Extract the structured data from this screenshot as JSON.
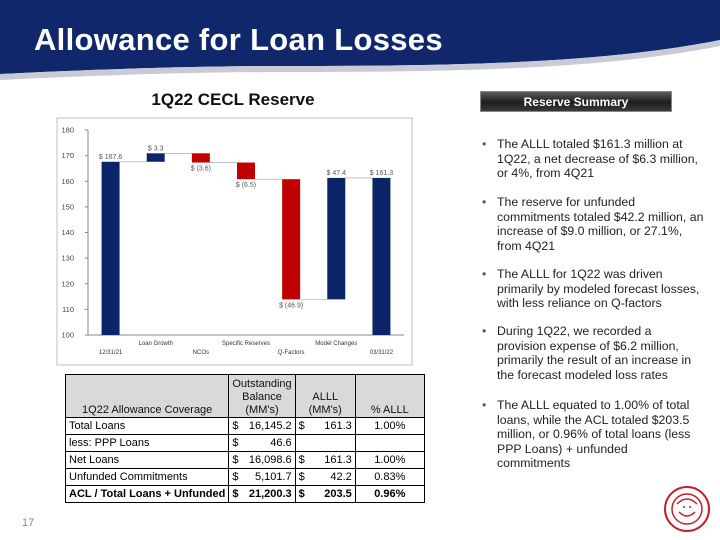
{
  "header": {
    "title": "Allowance for Loan Losses",
    "page_number": "17"
  },
  "chart_data": {
    "type": "waterfall",
    "title": "1Q22 CECL Reserve",
    "categories": [
      "12/31/21",
      "Loan Growth",
      "NCOs",
      "Specific Reserves",
      "Q-Factors",
      "Model Changes",
      "03/31/22"
    ],
    "values": [
      167.6,
      3.3,
      -3.6,
      -6.5,
      -46.9,
      47.4,
      161.3
    ],
    "value_labels": [
      "$ 167.6",
      "$ 3.3",
      "$ (3.6)",
      "$ (6.5)",
      "$ (46.9)",
      "$ 47.4",
      "$ 161.3"
    ],
    "measure": [
      "total",
      "relative",
      "relative",
      "relative",
      "relative",
      "relative",
      "total"
    ],
    "colors": {
      "total": "#0c2468",
      "increase": "#0c2468",
      "decrease": "#c00000"
    },
    "ylim": [
      100,
      180
    ],
    "yticks": [
      100,
      110,
      120,
      130,
      140,
      150,
      160,
      170,
      180
    ],
    "grid": false
  },
  "summary": {
    "title": "Reserve Summary",
    "bullets": [
      "The ALLL totaled $161.3 million at 1Q22, a net decrease of $6.3 million, or 4%, from 4Q21",
      "The reserve for unfunded commitments totaled $42.2 million, an increase of $9.0 million, or 27.1%, from 4Q21",
      "The ALLL for 1Q22 was driven primarily by modeled forecast losses, with less reliance on Q-factors",
      "During 1Q22, we recorded a provision expense of $6.2 million, primarily the result of an increase in the forecast modeled loss rates",
      "The ALLL equated to 1.00% of total loans, while the ACL totaled $203.5 million, or 0.96% of total loans (less PPP Loans) + unfunded commitments"
    ]
  },
  "table": {
    "columns": [
      "1Q22 Allowance Coverage",
      "Outstanding\nBalance\n(MM's)",
      "ALLL\n(MM's)",
      "% ALLL"
    ],
    "rows": [
      [
        "Total Loans",
        "$",
        "16,145.2",
        "$",
        "161.3",
        "1.00%"
      ],
      [
        "less: PPP Loans",
        "$",
        "46.6",
        null,
        null,
        null
      ],
      [
        "Net Loans",
        "$",
        "16,098.6",
        "$",
        "161.3",
        "1.00%"
      ],
      [
        "Unfunded Commitments",
        "$",
        "5,101.7",
        "$",
        "42.2",
        "0.83%"
      ],
      [
        "ACL / Total Loans + Unfunded",
        "$",
        "21,200.3",
        "$",
        "203.5",
        "0.96%"
      ]
    ]
  }
}
